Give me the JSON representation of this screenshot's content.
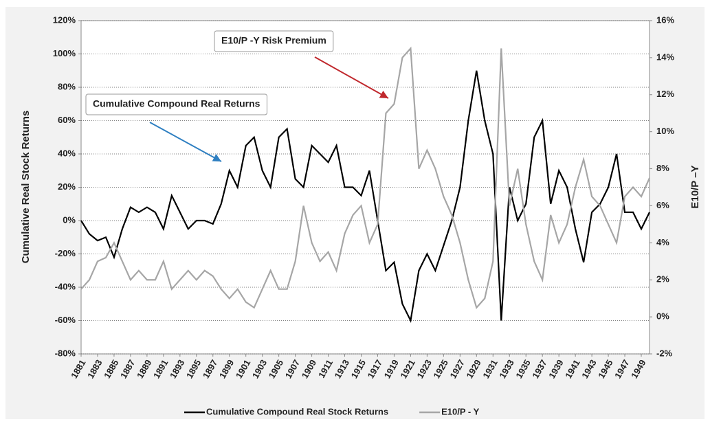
{
  "chart_data": {
    "type": "line",
    "y_label": "Cumulative Real Stock Returns",
    "y2_label": "E10/P –Y",
    "x": [
      1881,
      1882,
      1883,
      1884,
      1885,
      1886,
      1887,
      1888,
      1889,
      1890,
      1891,
      1892,
      1893,
      1894,
      1895,
      1896,
      1897,
      1898,
      1899,
      1900,
      1901,
      1902,
      1903,
      1904,
      1905,
      1906,
      1907,
      1908,
      1909,
      1910,
      1911,
      1912,
      1913,
      1914,
      1915,
      1916,
      1917,
      1918,
      1919,
      1920,
      1921,
      1922,
      1923,
      1924,
      1925,
      1926,
      1927,
      1928,
      1929,
      1930,
      1931,
      1932,
      1933,
      1934,
      1935,
      1936,
      1937,
      1938,
      1939,
      1940,
      1941,
      1942,
      1943,
      1944,
      1945,
      1946,
      1947,
      1948,
      1949,
      1950
    ],
    "series": [
      {
        "name": "Cumulative Compound Real Stock Returns",
        "color": "#000000",
        "axis": "y",
        "values": [
          0,
          -8,
          -12,
          -10,
          -22,
          -5,
          8,
          5,
          8,
          5,
          -5,
          15,
          5,
          -5,
          0,
          0,
          -2,
          10,
          30,
          20,
          45,
          50,
          30,
          20,
          50,
          55,
          25,
          20,
          45,
          40,
          35,
          45,
          20,
          20,
          15,
          30,
          0,
          -30,
          -25,
          -50,
          -60,
          -30,
          -20,
          -30,
          -15,
          0,
          20,
          60,
          90,
          60,
          40,
          -60,
          20,
          0,
          10,
          50,
          60,
          10,
          30,
          20,
          -5,
          -25,
          5,
          10,
          20,
          40,
          5,
          5,
          -5,
          5
        ]
      },
      {
        "name": "E10/P - Y",
        "color": "#a6a6a6",
        "axis": "y2",
        "values": [
          1.5,
          2.0,
          3.0,
          3.2,
          4.0,
          3.0,
          2.0,
          2.5,
          2.0,
          2.0,
          3.0,
          1.5,
          2.0,
          2.5,
          2.0,
          2.5,
          2.2,
          1.5,
          1.0,
          1.5,
          0.8,
          0.5,
          1.5,
          2.5,
          1.5,
          1.5,
          3.0,
          6.0,
          4.0,
          3.0,
          3.5,
          2.5,
          4.5,
          5.5,
          6.0,
          4.0,
          5.0,
          11.0,
          11.5,
          14.0,
          14.5,
          8.0,
          9.0,
          8.0,
          6.5,
          5.5,
          4.0,
          2.0,
          0.5,
          1.0,
          3.0,
          14.5,
          6.0,
          8.0,
          5.0,
          3.0,
          2.0,
          5.5,
          4.0,
          5.0,
          7.0,
          8.5,
          6.5,
          6.0,
          5.0,
          4.0,
          6.5,
          7.0,
          6.5,
          7.5
        ]
      }
    ],
    "xlim": [
      1881,
      1950
    ],
    "xticks": [
      1881,
      1883,
      1885,
      1887,
      1889,
      1891,
      1893,
      1895,
      1897,
      1899,
      1901,
      1903,
      1905,
      1907,
      1909,
      1911,
      1913,
      1915,
      1917,
      1919,
      1921,
      1923,
      1925,
      1927,
      1929,
      1931,
      1933,
      1935,
      1937,
      1939,
      1941,
      1943,
      1945,
      1947,
      1949
    ],
    "ylim": [
      -80,
      120
    ],
    "yticks": [
      {
        "value": -80,
        "label": "-80%"
      },
      {
        "value": -60,
        "label": "-60%"
      },
      {
        "value": -40,
        "label": "-40%"
      },
      {
        "value": -20,
        "label": "-20%"
      },
      {
        "value": 0,
        "label": "0%"
      },
      {
        "value": 20,
        "label": "20%"
      },
      {
        "value": 40,
        "label": "40%"
      },
      {
        "value": 60,
        "label": "60%"
      },
      {
        "value": 80,
        "label": "80%"
      },
      {
        "value": 100,
        "label": "100%"
      },
      {
        "value": 120,
        "label": "120%"
      }
    ],
    "y2lim": [
      -2,
      16
    ],
    "y2ticks": [
      {
        "value": -2,
        "label": "-2%"
      },
      {
        "value": 0,
        "label": "0%"
      },
      {
        "value": 2,
        "label": "2%"
      },
      {
        "value": 4,
        "label": "4%"
      },
      {
        "value": 6,
        "label": "6%"
      },
      {
        "value": 8,
        "label": "8%"
      },
      {
        "value": 10,
        "label": "10%"
      },
      {
        "value": 12,
        "label": "12%"
      },
      {
        "value": 14,
        "label": "14%"
      },
      {
        "value": 16,
        "label": "16%"
      }
    ],
    "grid": true,
    "legend": "bottom",
    "annotations": [
      {
        "text": "E10/P -Y Risk Premium",
        "arrow_color": "#c0282d"
      },
      {
        "text": "Cumulative Compound Real Returns",
        "arrow_color": "#2e7fc1"
      }
    ]
  }
}
